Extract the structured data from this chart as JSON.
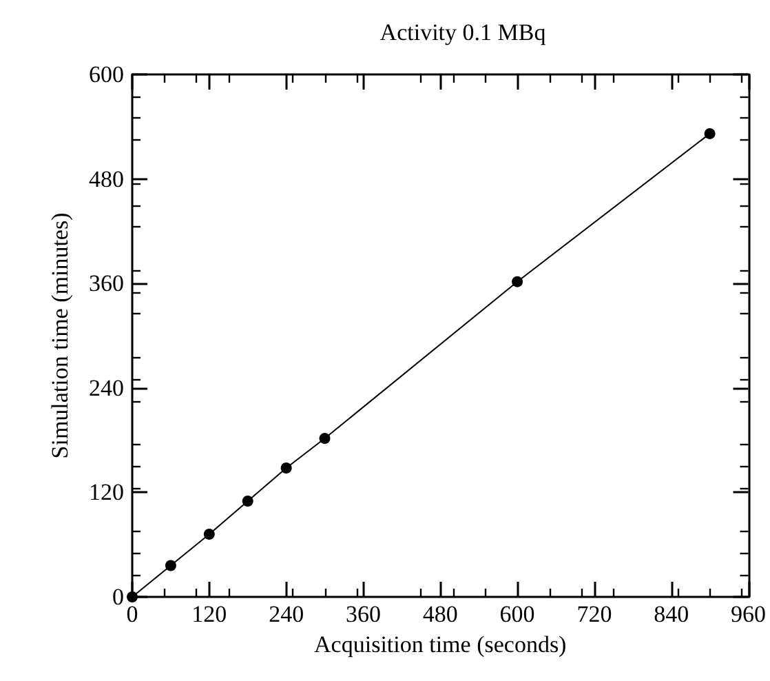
{
  "chart_data": {
    "type": "line",
    "title": "Activity 0.1 MBq",
    "xlabel": "Acquisition time (seconds)",
    "ylabel": "Simulation time (minutes)",
    "x": [
      0,
      60,
      120,
      180,
      240,
      300,
      600,
      900
    ],
    "series": [
      {
        "color": "#000000",
        "values": [
          0,
          36,
          72,
          110,
          148,
          182,
          362,
          532
        ]
      }
    ],
    "xlim": [
      0,
      960
    ],
    "xticks": [
      0,
      120,
      240,
      360,
      480,
      600,
      720,
      840,
      960
    ],
    "ylim": [
      0,
      600
    ],
    "yticks": [
      0,
      120,
      240,
      360,
      480,
      600
    ],
    "grid": false,
    "marker": "circle",
    "line_style": "solid"
  }
}
